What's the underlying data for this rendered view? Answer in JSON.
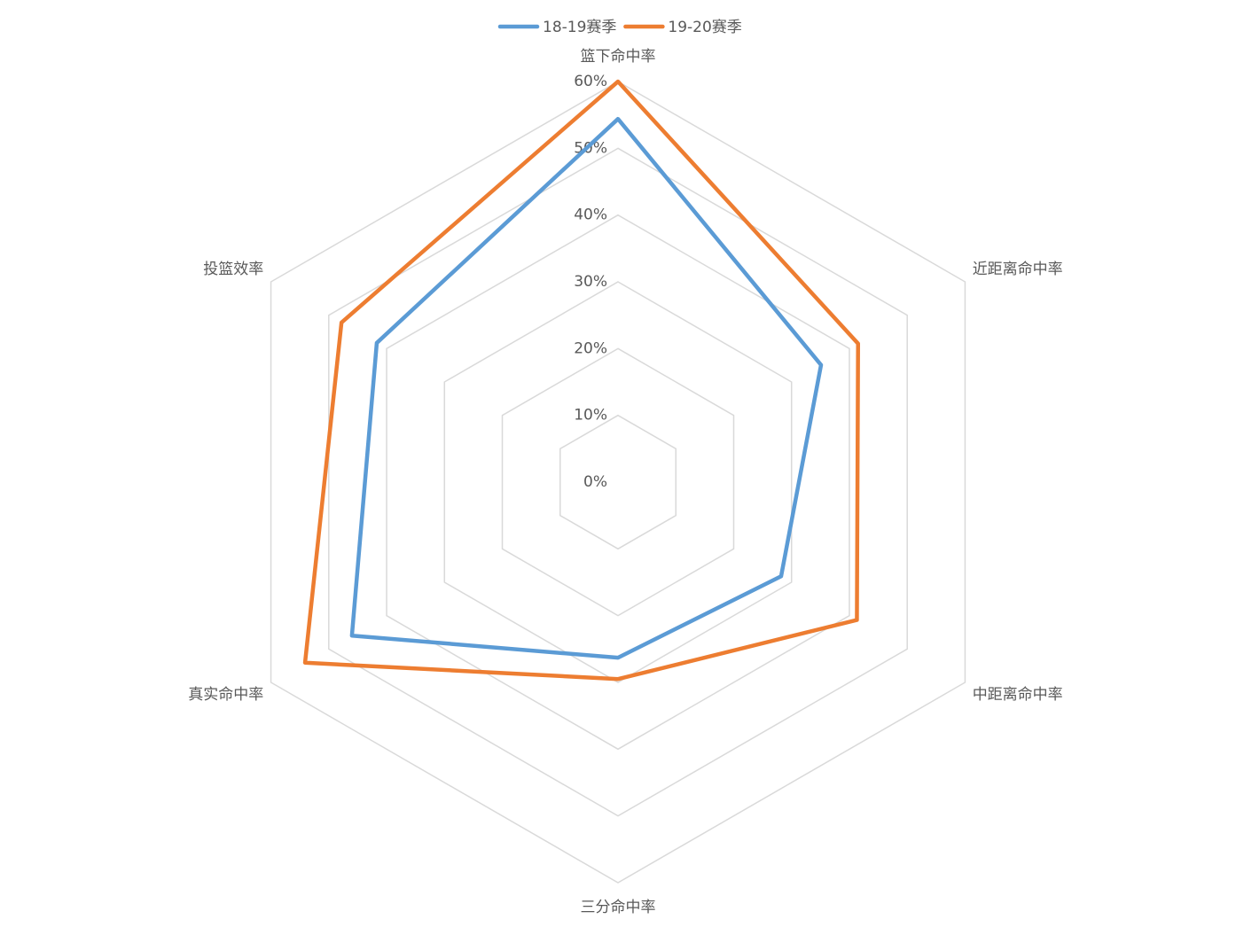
{
  "chart_data": {
    "type": "radar",
    "categories": [
      "篮下命中率",
      "近距离命中率",
      "中距离命中率",
      "三分命中率",
      "真实命中率",
      "投篮效率"
    ],
    "series": [
      {
        "name": "18-19赛季",
        "color": "#5b9bd5",
        "values": [
          54.4,
          35.1,
          28.2,
          26.3,
          46,
          41.7
        ]
      },
      {
        "name": "19-20赛季",
        "color": "#ed7d31",
        "values": [
          60,
          41.5,
          41.3,
          29.5,
          54.1,
          47.8
        ]
      }
    ],
    "ylim": [
      0,
      60
    ],
    "yticks": [
      {
        "value": 0,
        "label": "0%"
      },
      {
        "value": 10,
        "label": "10%"
      },
      {
        "value": 20,
        "label": "20%"
      },
      {
        "value": 30,
        "label": "30%"
      },
      {
        "value": 40,
        "label": "40%"
      },
      {
        "value": 50,
        "label": "50%"
      },
      {
        "value": 60,
        "label": "60%"
      }
    ],
    "grid": true,
    "legend": "top"
  }
}
